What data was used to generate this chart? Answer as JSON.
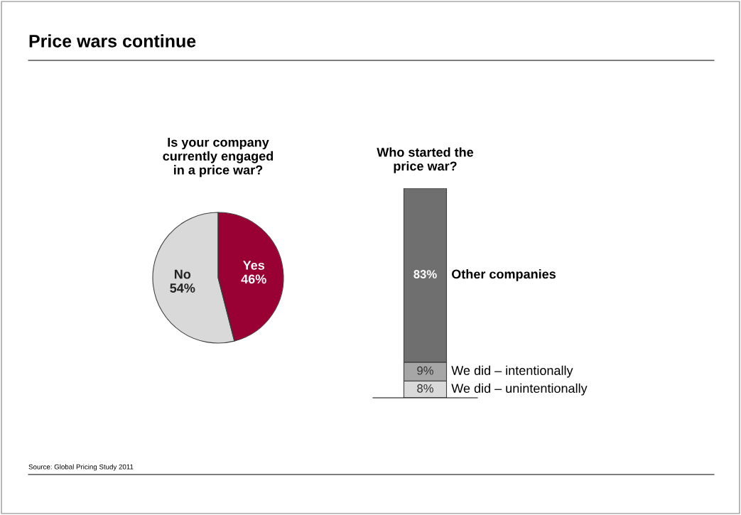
{
  "chart_data": [
    {
      "type": "pie",
      "title": "Is your company\ncurrently engaged\nin a price war?",
      "categories": [
        "No",
        "Yes"
      ],
      "values": [
        54,
        46
      ],
      "colors": [
        "#d9d9d9",
        "#990033"
      ],
      "value_labels": [
        "54%",
        "46%"
      ],
      "annotations": [
        "Price wars continue",
        "Source: Global Pricing Study 2011"
      ],
      "legend": false
    },
    {
      "type": "bar",
      "stacked": true,
      "title": "Who started the\nprice war?",
      "categories": [
        null
      ],
      "series": [
        {
          "name": "We did – unintentionally",
          "color": "#d9d9d9",
          "values": [
            8
          ],
          "value_labels": [
            "8%"
          ]
        },
        {
          "name": "We did – intentionally",
          "color": "#a6a6a6",
          "values": [
            9
          ],
          "value_labels": [
            "9%"
          ]
        },
        {
          "name": "Other companies",
          "color": "#6f6f6f",
          "values": [
            83
          ],
          "value_labels": [
            "83%"
          ]
        }
      ]
    }
  ]
}
